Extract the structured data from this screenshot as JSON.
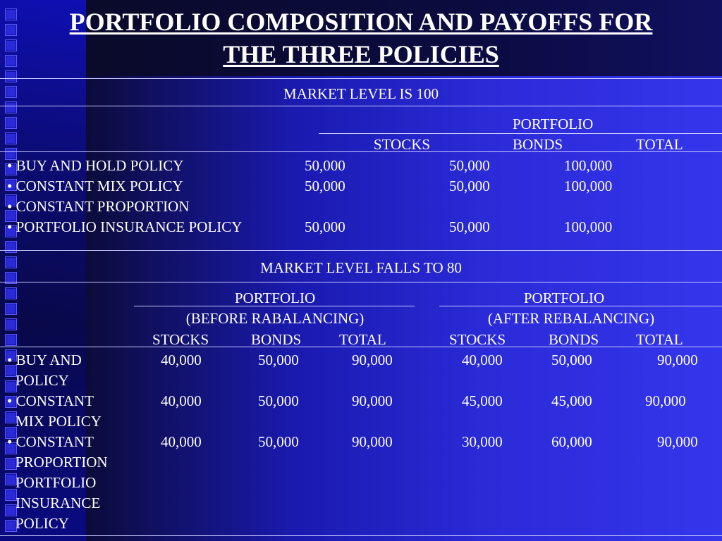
{
  "title": {
    "line1": "PORTFOLIO COMPOSITION AND PAYOFFS FOR",
    "line2": "THE THREE POLICIES"
  },
  "section1": {
    "heading": "MARKET LEVEL IS 100",
    "portfolio_label": "PORTFOLIO",
    "columns": [
      "STOCKS",
      "BONDS",
      "TOTAL"
    ],
    "rows": [
      {
        "policy": "• BUY AND HOLD POLICY",
        "stocks": "50,000",
        "bonds": "50,000",
        "total": "100,000"
      },
      {
        "policy": "• CONSTANT MIX POLICY",
        "stocks": "50,000",
        "bonds": "50,000",
        "total": "100,000"
      },
      {
        "policy": "• CONSTANT PROPORTION",
        "stocks": "",
        "bonds": "",
        "total": ""
      },
      {
        "policy": "• PORTFOLIO INSURANCE POLICY",
        "stocks": "50,000",
        "bonds": "50,000",
        "total": "100,000"
      }
    ]
  },
  "section2": {
    "heading": "MARKET LEVEL FALLS TO 80",
    "before": {
      "portfolio_label": "PORTFOLIO",
      "subtitle": "(BEFORE RABALANCING)"
    },
    "after": {
      "portfolio_label": "PORTFOLIO",
      "subtitle": "(AFTER REBALANCING)"
    },
    "columns": [
      "STOCKS",
      "BONDS",
      "TOTAL"
    ],
    "rows": [
      {
        "policy_lines": [
          "• BUY AND",
          " POLICY"
        ],
        "before": {
          "stocks": "40,000",
          "bonds": "50,000",
          "total": "90,000"
        },
        "after": {
          "stocks": "40,000",
          "bonds": "50,000",
          "total": "90,000"
        }
      },
      {
        "policy_lines": [
          "• CONSTANT",
          "MIX POLICY"
        ],
        "before": {
          "stocks": "40,000",
          "bonds": "50,000",
          "total": "90,000"
        },
        "after": {
          "stocks": "45,000",
          "bonds": "45,000",
          "total": "90,000"
        }
      },
      {
        "policy_lines": [
          "• CONSTANT",
          "PROPORTION",
          "PORTFOLIO",
          "INSURANCE",
          "POLICY"
        ],
        "before": {
          "stocks": "40,000",
          "bonds": "50,000",
          "total": "90,000"
        },
        "after": {
          "stocks": "30,000",
          "bonds": "60,000",
          "total": "90,000"
        }
      }
    ]
  }
}
